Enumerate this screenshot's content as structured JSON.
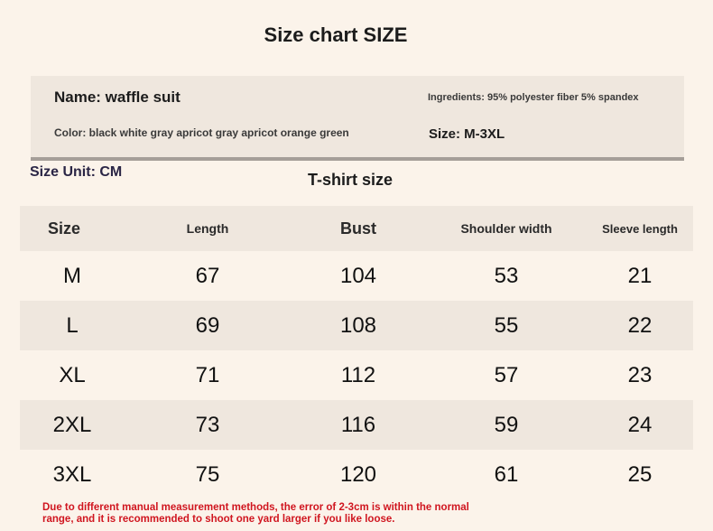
{
  "title": "Size chart SIZE",
  "info": {
    "name": "Name: waffle suit",
    "ingredients": "Ingredients: 95% polyester fiber 5% spandex",
    "color": "Color: black white gray apricot gray apricot orange green",
    "size": "Size: M-3XL"
  },
  "size_unit": "Size Unit: CM",
  "table_title": "T-shirt size",
  "table": {
    "headers": [
      "Size",
      "Length",
      "Bust",
      "Shoulder width",
      "Sleeve length"
    ],
    "rows": [
      [
        "M",
        "67",
        "104",
        "53",
        "21"
      ],
      [
        "L",
        "69",
        "108",
        "55",
        "22"
      ],
      [
        "XL",
        "71",
        "112",
        "57",
        "23"
      ],
      [
        "2XL",
        "73",
        "116",
        "59",
        "24"
      ],
      [
        "3XL",
        "75",
        "120",
        "61",
        "25"
      ]
    ]
  },
  "note": {
    "line1": "Due to different manual measurement methods, the error of 2-3cm is within the normal",
    "line2": "range, and it is recommended to shoot one yard larger if you like loose."
  },
  "colors": {
    "background": "#fbf3ea",
    "band": "#efe7de",
    "note_red": "#d0151f"
  }
}
